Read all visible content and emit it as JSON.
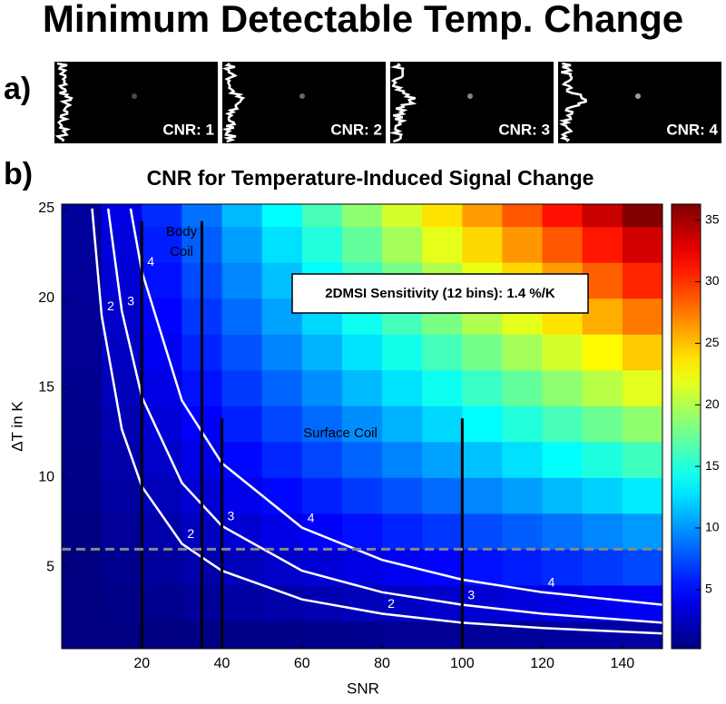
{
  "title": "Minimum Detectable Temp. Change",
  "panel_a": {
    "label": "a)",
    "images": [
      "CNR: 1",
      "CNR: 2",
      "CNR: 3",
      "CNR: 4"
    ]
  },
  "chart_data": {
    "type": "heatmap",
    "panel_label": "b)",
    "title": "CNR for Temperature-Induced Signal Change",
    "x_label": "SNR",
    "y_label": "ΔT in K",
    "x": [
      5,
      15,
      25,
      35,
      45,
      55,
      65,
      75,
      85,
      95,
      105,
      115,
      125,
      135,
      145
    ],
    "y": [
      1,
      3,
      5,
      7,
      9,
      11,
      13,
      15,
      17,
      19,
      21,
      23,
      25
    ],
    "values": [
      [
        0.05,
        0.15,
        0.25,
        0.35,
        0.45,
        0.55,
        0.65,
        0.75,
        0.85,
        0.95,
        1.05,
        1.15,
        1.25,
        1.35,
        1.45
      ],
      [
        0.15,
        0.45,
        0.75,
        1.05,
        1.35,
        1.65,
        1.95,
        2.25,
        2.55,
        2.85,
        3.15,
        3.45,
        3.75,
        4.05,
        4.35
      ],
      [
        0.25,
        0.75,
        1.25,
        1.75,
        2.25,
        2.75,
        3.25,
        3.75,
        4.25,
        4.75,
        5.25,
        5.75,
        6.25,
        6.75,
        7.25
      ],
      [
        0.35,
        1.05,
        1.75,
        2.45,
        3.15,
        3.85,
        4.55,
        5.25,
        5.95,
        6.65,
        7.35,
        8.05,
        8.75,
        9.45,
        10.15
      ],
      [
        0.45,
        1.35,
        2.25,
        3.15,
        4.05,
        4.95,
        5.85,
        6.75,
        7.65,
        8.55,
        9.45,
        10.35,
        11.25,
        12.15,
        13.05
      ],
      [
        0.55,
        1.65,
        2.75,
        3.85,
        4.95,
        6.05,
        7.15,
        8.25,
        9.35,
        10.45,
        11.55,
        12.65,
        13.75,
        14.85,
        15.95
      ],
      [
        0.65,
        1.95,
        3.25,
        4.55,
        5.85,
        7.15,
        8.45,
        9.75,
        11.05,
        12.35,
        13.65,
        14.95,
        16.25,
        17.55,
        18.85
      ],
      [
        0.75,
        2.25,
        3.75,
        5.25,
        6.75,
        8.25,
        9.75,
        11.25,
        12.75,
        14.25,
        15.75,
        17.25,
        18.75,
        20.25,
        21.75
      ],
      [
        0.85,
        2.55,
        4.25,
        5.95,
        7.65,
        9.35,
        11.05,
        12.75,
        14.45,
        16.15,
        17.85,
        19.55,
        21.25,
        22.95,
        24.65
      ],
      [
        0.95,
        2.85,
        4.75,
        6.65,
        8.55,
        10.45,
        12.35,
        14.25,
        16.15,
        18.05,
        19.95,
        21.85,
        23.75,
        25.65,
        27.55
      ],
      [
        1.05,
        3.15,
        5.25,
        7.35,
        9.45,
        11.55,
        13.65,
        15.75,
        17.85,
        19.95,
        22.05,
        24.15,
        26.25,
        28.35,
        30.45
      ],
      [
        1.15,
        3.45,
        5.75,
        8.05,
        10.35,
        12.65,
        14.95,
        17.25,
        19.55,
        21.85,
        24.15,
        26.45,
        28.75,
        31.05,
        33.35
      ],
      [
        1.25,
        3.75,
        6.25,
        8.75,
        11.25,
        13.75,
        16.25,
        18.75,
        21.25,
        23.75,
        26.25,
        28.75,
        31.25,
        33.75,
        36.25
      ]
    ],
    "xlim": [
      0,
      150
    ],
    "ylim": [
      0.45,
      25.25
    ],
    "xticks": [
      20,
      40,
      60,
      80,
      100,
      120,
      140
    ],
    "yticks": [
      5,
      10,
      15,
      20,
      25
    ],
    "colorbar": {
      "lim": [
        0.2,
        36.3
      ],
      "ticks": [
        5,
        10,
        15,
        20,
        25,
        30,
        35
      ]
    },
    "contours": [
      {
        "level": 2,
        "x": [
          7.6,
          10,
          15,
          20,
          30,
          40,
          60,
          80,
          100,
          120,
          150
        ],
        "y": [
          25,
          19,
          12.7,
          9.5,
          6.3,
          4.8,
          3.2,
          2.4,
          1.9,
          1.6,
          1.3
        ]
      },
      {
        "level": 3,
        "x": [
          11.6,
          15,
          20,
          30,
          40,
          60,
          80,
          100,
          120,
          150
        ],
        "y": [
          25,
          19.3,
          14.5,
          9.7,
          7.3,
          4.8,
          3.6,
          2.9,
          2.4,
          1.9
        ]
      },
      {
        "level": 4,
        "x": [
          17.2,
          20,
          30,
          40,
          60,
          80,
          100,
          120,
          150
        ],
        "y": [
          25,
          21.5,
          14.3,
          10.8,
          7.2,
          5.4,
          4.3,
          3.6,
          2.9
        ]
      }
    ],
    "coil_lines": [
      {
        "x": 20,
        "y_top": 24.3
      },
      {
        "x": 35,
        "y_top": 24.3
      },
      {
        "x": 40,
        "y_top": 13.3
      },
      {
        "x": 100,
        "y_top": 13.3
      }
    ],
    "threshold": 6,
    "annotations": {
      "body_coil": [
        "Body",
        "Coil"
      ],
      "surface_coil": "Surface Coil",
      "sensitivity": "2DMSI Sensitivity (12 bins): 1.4 %/K"
    }
  }
}
